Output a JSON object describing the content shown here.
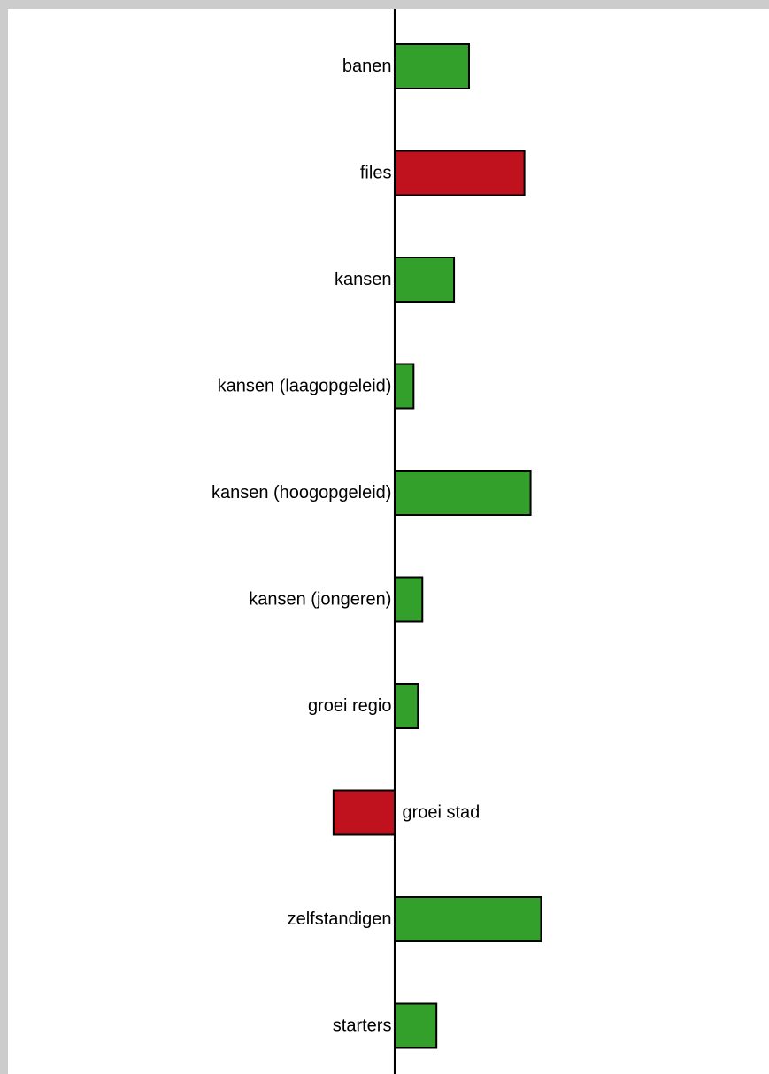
{
  "chart_data": {
    "type": "bar",
    "orientation": "horizontal",
    "categories": [
      "banen",
      "files",
      "kansen",
      "kansen (laagopgeleid)",
      "kansen (hoogopgeleid)",
      "kansen (jongeren)",
      "groei regio",
      "groei stad",
      "zelfstandigen",
      "starters"
    ],
    "values": [
      84,
      147,
      67,
      21,
      154,
      31,
      26,
      -70,
      166,
      47
    ],
    "bar_colors": [
      "#33a02c",
      "#c0121e",
      "#33a02c",
      "#33a02c",
      "#33a02c",
      "#33a02c",
      "#33a02c",
      "#c0121e",
      "#33a02c",
      "#33a02c"
    ],
    "xlim": [
      -440,
      425
    ],
    "title": "",
    "xlabel": "",
    "ylabel": "",
    "grid": false,
    "legend": "none"
  },
  "colors": {
    "positive": "#33a02c",
    "negative": "#c0121e",
    "axis": "#000000",
    "background": "#ffffff",
    "border": "#cccccc"
  }
}
